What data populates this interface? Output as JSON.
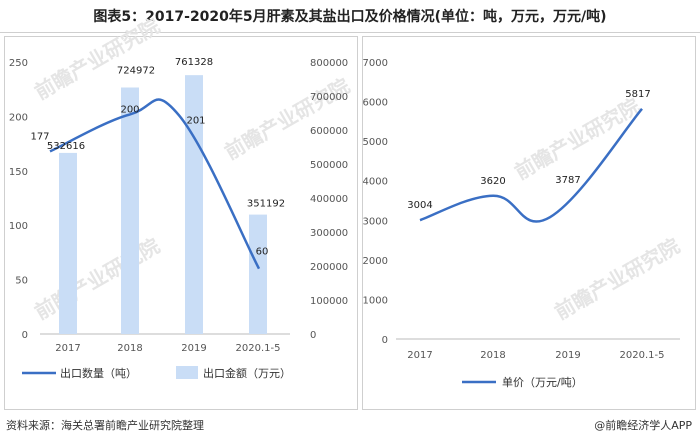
{
  "title": "图表5：2017-2020年5月肝素及其盐出口及价格情况(单位：吨，万元，万元/吨)",
  "source": "资料来源：海关总署前瞻产业研究院整理",
  "brand": "@前瞻经济学人APP",
  "watermark": "前瞻产业研究院",
  "chart_data": [
    {
      "type": "bar+line",
      "categories": [
        "2017",
        "2018",
        "2019",
        "2020.1-5"
      ],
      "series": [
        {
          "name": "出口数量（吨）",
          "kind": "line",
          "axis": "left",
          "values": [
            177,
            200,
            201,
            60
          ],
          "labels": [
            "177",
            "200",
            "201",
            "60"
          ],
          "color": "#3a6fc4"
        },
        {
          "name": "出口金额（万元）",
          "kind": "bar",
          "axis": "right",
          "values": [
            532616,
            724972,
            761328,
            351192
          ],
          "labels": [
            "532616",
            "724972",
            "761328",
            "351192"
          ],
          "color": "#c9ddf6"
        }
      ],
      "y_left": {
        "min": 0,
        "max": 250,
        "ticks": [
          "0",
          "50",
          "100",
          "150",
          "200",
          "250"
        ]
      },
      "y_right": {
        "min": 0,
        "max": 800000,
        "ticks": [
          "0",
          "100000",
          "200000",
          "300000",
          "400000",
          "500000",
          "600000",
          "700000",
          "800000"
        ]
      },
      "legend": "bottom"
    },
    {
      "type": "line",
      "categories": [
        "2017",
        "2018",
        "2019",
        "2020.1-5"
      ],
      "series": [
        {
          "name": "单价（万元/吨）",
          "values": [
            3004,
            3620,
            3787,
            5817
          ],
          "labels": [
            "3004",
            "3620",
            "3787",
            "5817"
          ],
          "color": "#3a6fc4"
        }
      ],
      "y": {
        "min": 0,
        "max": 7000,
        "ticks": [
          "0",
          "1000",
          "2000",
          "3000",
          "4000",
          "5000",
          "6000",
          "7000"
        ]
      },
      "legend": "bottom"
    }
  ]
}
